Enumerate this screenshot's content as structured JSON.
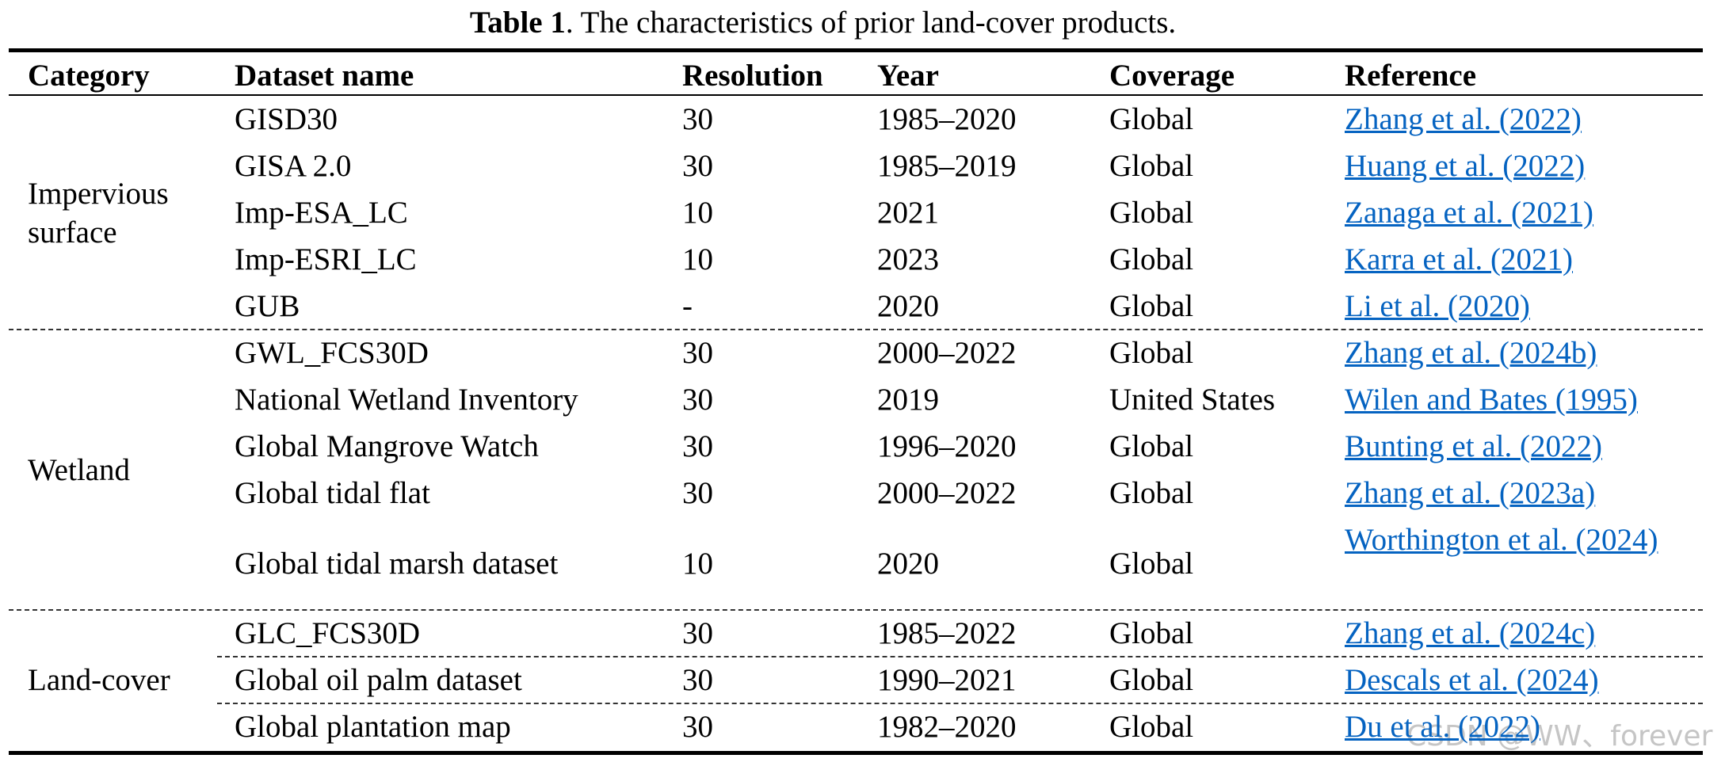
{
  "title": {
    "label": "Table 1",
    "text": ". The characteristics of prior land-cover products."
  },
  "header": [
    "Category",
    "Dataset name",
    "Resolution",
    "Year",
    "Coverage",
    "Reference"
  ],
  "groups": [
    {
      "category": "Impervious surface",
      "rows": [
        [
          "GISD30",
          "30",
          "1985–2020",
          "Global",
          "Zhang et al. (2022)"
        ],
        [
          "GISA 2.0",
          "30",
          "1985–2019",
          "Global",
          "Huang et al. (2022)"
        ],
        [
          "Imp-ESA_LC",
          "10",
          "2021",
          "Global",
          "Zanaga et al. (2021)"
        ],
        [
          "Imp-ESRI_LC",
          "10",
          "2023",
          "Global",
          "Karra et al. (2021)"
        ],
        [
          "GUB",
          "-",
          "2020",
          "Global",
          "Li et al. (2020)"
        ]
      ]
    },
    {
      "category": "Wetland",
      "rows": [
        [
          "GWL_FCS30D",
          "30",
          "2000–2022",
          "Global",
          "Zhang et al. (2024b)"
        ],
        [
          "National Wetland Inventory",
          "30",
          "2019",
          "United States",
          "Wilen and Bates (1995)"
        ],
        [
          "Global Mangrove Watch",
          "30",
          "1996–2020",
          "Global",
          "Bunting et al. (2022)"
        ],
        [
          "Global tidal flat",
          "30",
          "2000–2022",
          "Global",
          "Zhang et al. (2023a)"
        ],
        [
          "Global tidal marsh dataset",
          "10",
          "2020",
          "Global",
          "Worthington et al. (2024)"
        ]
      ]
    },
    {
      "category": "Land-cover",
      "rows": [
        [
          "GLC_FCS30D",
          "30",
          "1985–2022",
          "Global",
          "Zhang et al. (2024c)"
        ],
        [
          "Global oil palm dataset",
          "30",
          "1990–2021",
          "Global",
          "Descals et al. (2024)"
        ],
        [
          "Global plantation map",
          "30",
          "1982–2020",
          "Global",
          "Du et al. (2022)"
        ]
      ]
    }
  ],
  "watermark": "CSDN @WW、forever"
}
